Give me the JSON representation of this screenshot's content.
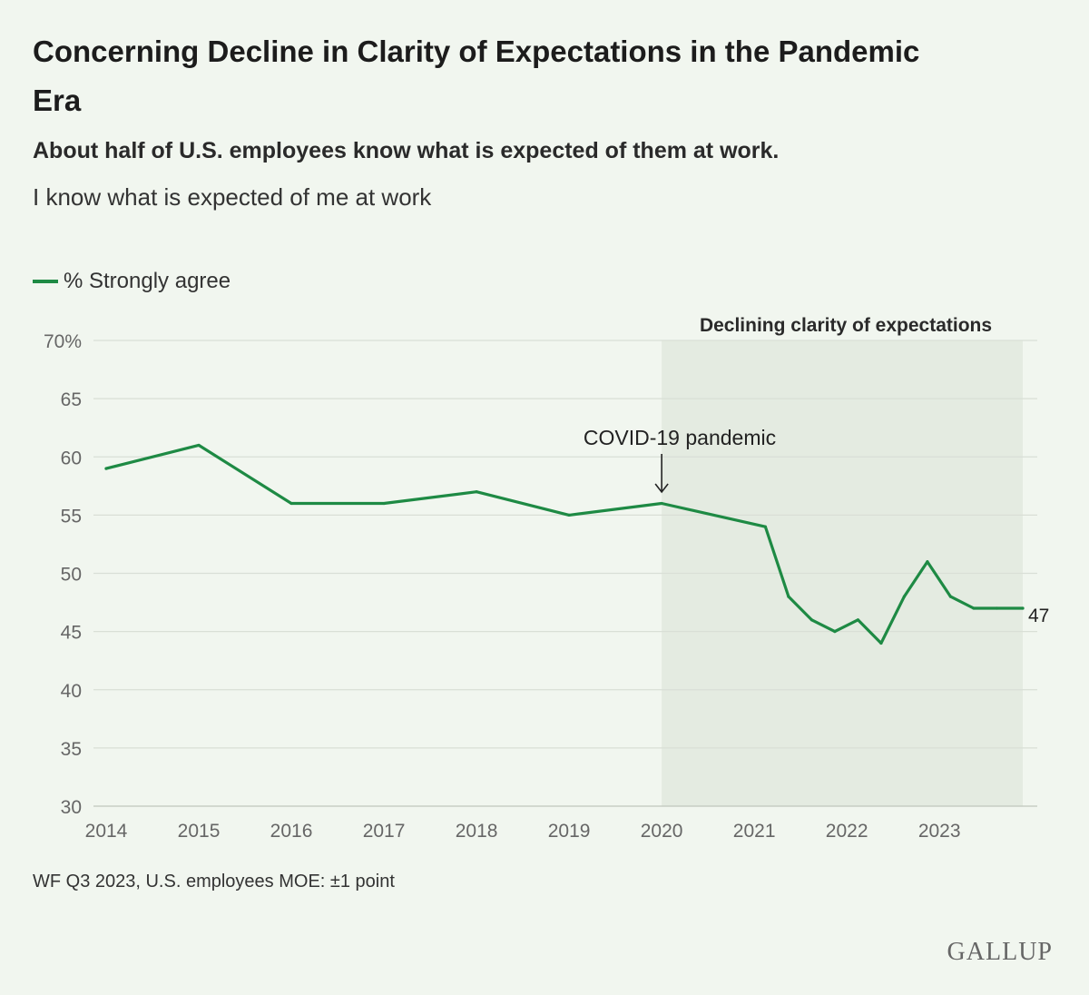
{
  "title": "Concerning Decline in Clarity of Expectations in the Pandemic Era",
  "subtitle": "About half of U.S. employees know what is expected of them at work.",
  "question": "I know what is expected of me at work",
  "legend": {
    "label": "% Strongly agree"
  },
  "source": "WF Q3 2023, U.S. employees MOE: ±1 point",
  "logo": "GALLUP",
  "colors": {
    "line": "#1e8a44",
    "shade": "#e4ebe1",
    "grid": "#d9dfd6",
    "background": "#f1f6ef"
  },
  "chart_data": {
    "type": "line",
    "title": "I know what is expected of me at work",
    "xlabel": "",
    "ylabel": "",
    "xlim": [
      2014,
      2023.9
    ],
    "ylim": [
      30,
      70
    ],
    "y_ticks": [
      {
        "value": 70,
        "label": "70%"
      },
      {
        "value": 65,
        "label": "65"
      },
      {
        "value": 60,
        "label": "60"
      },
      {
        "value": 55,
        "label": "55"
      },
      {
        "value": 50,
        "label": "50"
      },
      {
        "value": 45,
        "label": "45"
      },
      {
        "value": 40,
        "label": "40"
      },
      {
        "value": 35,
        "label": "35"
      },
      {
        "value": 30,
        "label": "30"
      }
    ],
    "x_ticks": [
      {
        "value": 2014,
        "label": "2014"
      },
      {
        "value": 2015,
        "label": "2015"
      },
      {
        "value": 2016,
        "label": "2016"
      },
      {
        "value": 2017,
        "label": "2017"
      },
      {
        "value": 2018,
        "label": "2018"
      },
      {
        "value": 2019,
        "label": "2019"
      },
      {
        "value": 2020,
        "label": "2020"
      },
      {
        "value": 2021,
        "label": "2021"
      },
      {
        "value": 2022,
        "label": "2022"
      },
      {
        "value": 2023,
        "label": "2023"
      }
    ],
    "series": [
      {
        "name": "% Strongly agree",
        "x": [
          2014,
          2015,
          2016,
          2017,
          2018,
          2019,
          2020,
          2021.12,
          2021.37,
          2021.62,
          2021.87,
          2022.12,
          2022.37,
          2022.62,
          2022.87,
          2023.12,
          2023.37,
          2023.62,
          2023.9
        ],
        "y": [
          59,
          61,
          56,
          56,
          57,
          55,
          56,
          54,
          48,
          46,
          45,
          46,
          44,
          48,
          51,
          48,
          47,
          47,
          47
        ]
      }
    ],
    "end_label": "47",
    "shaded_region": {
      "x_start": 2020,
      "x_end": 2023.9,
      "label": "Declining clarity of expectations"
    },
    "annotation": {
      "text": "COVID-19 pandemic",
      "x": 2020
    }
  }
}
